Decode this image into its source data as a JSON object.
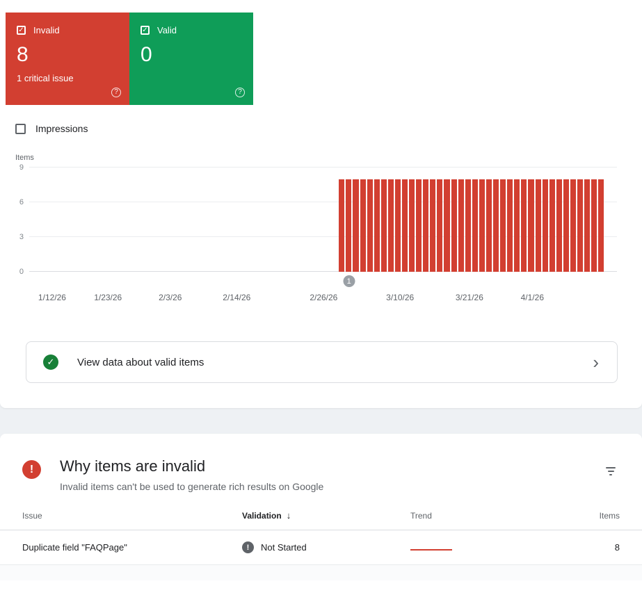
{
  "tiles": {
    "invalid": {
      "label": "Invalid",
      "count": "8",
      "subtitle": "1 critical issue",
      "color": "#d23f31",
      "help_icon": "?"
    },
    "valid": {
      "label": "Valid",
      "count": "0",
      "color": "#0f9d58",
      "help_icon": "?"
    }
  },
  "impressions_toggle": {
    "label": "Impressions",
    "checked": false
  },
  "chart_data": {
    "type": "bar",
    "title": "",
    "ylabel": "Items",
    "xlabel": "",
    "ylim": [
      0,
      9
    ],
    "yticks": [
      0,
      3,
      6,
      9
    ],
    "xticks": [
      "1/12/26",
      "1/23/26",
      "2/3/26",
      "2/14/26",
      "2/26/26",
      "3/10/26",
      "3/21/26",
      "4/1/26"
    ],
    "grid": true,
    "legend_position": "none",
    "series": [
      {
        "name": "Invalid items",
        "color": "#d23f31",
        "value": 8,
        "bar_count": 38,
        "bars_start_near": "2/26/26"
      }
    ],
    "annotation": {
      "label": "1",
      "near_date": "2/26/26"
    }
  },
  "valid_banner": {
    "label": "View data about valid items",
    "chevron": "›"
  },
  "invalid_section": {
    "title": "Why items are invalid",
    "subtitle": "Invalid items can't be used to generate rich results on Google"
  },
  "table": {
    "headers": {
      "issue": "Issue",
      "validation": "Validation",
      "sort_arrow": "↓",
      "trend": "Trend",
      "items": "Items"
    },
    "rows": [
      {
        "issue": "Duplicate field \"FAQPage\"",
        "validation_status": "Not Started",
        "items": "8"
      }
    ]
  },
  "colors": {
    "invalid_red": "#d23f31",
    "valid_green": "#0f9d58",
    "banner_check_green": "#188038",
    "neutral_gray": "#5f6368"
  }
}
